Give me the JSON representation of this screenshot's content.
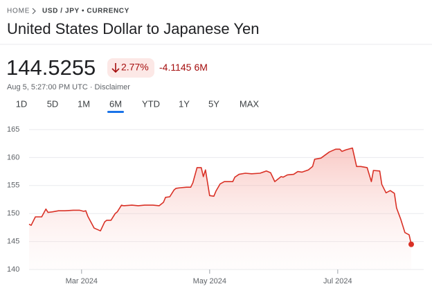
{
  "breadcrumb": {
    "home": "HOME",
    "pair": "USD / JPY • CURRENCY"
  },
  "title": "United States Dollar to Japanese Yen",
  "price": "144.5255",
  "change_percent": "2.77%",
  "change": "-4.1145",
  "period": "6M",
  "timestamp": "Aug 5, 5:27:00 PM UTC · Disclaimer",
  "tabs": [
    "1D",
    "5D",
    "1M",
    "6M",
    "YTD",
    "1Y",
    "5Y",
    "MAX"
  ],
  "active_tab": 3,
  "chart_data": {
    "type": "area",
    "color": "#d93025",
    "x": [
      0,
      1,
      3,
      6,
      8,
      9,
      11,
      14,
      17,
      21,
      24,
      26,
      27,
      28,
      31,
      34,
      36,
      37,
      39,
      41,
      42,
      44,
      45,
      49,
      52,
      55,
      59,
      62,
      64,
      65,
      67,
      69,
      70,
      72,
      75,
      77,
      78,
      80,
      82,
      83,
      84,
      86,
      88,
      89,
      91,
      93,
      97,
      98,
      100,
      103,
      106,
      110,
      113,
      115,
      117,
      120,
      121,
      123,
      126,
      128,
      130,
      133,
      135,
      136,
      139,
      143,
      146,
      148,
      149,
      151,
      154,
      156,
      158,
      161,
      163,
      164,
      167,
      168,
      170,
      172,
      174,
      175,
      177,
      179,
      181,
      182
    ],
    "values": [
      148.1,
      147.9,
      149.4,
      149.4,
      150.8,
      150.2,
      150.3,
      150.5,
      150.5,
      150.6,
      150.6,
      150.4,
      150.5,
      149.5,
      147.4,
      146.9,
      148.5,
      148.8,
      148.8,
      150.0,
      150.3,
      151.5,
      151.4,
      151.5,
      151.4,
      151.5,
      151.5,
      151.4,
      152.0,
      152.9,
      153.0,
      154.2,
      154.5,
      154.6,
      154.7,
      154.7,
      155.5,
      158.2,
      158.2,
      156.6,
      157.8,
      153.2,
      153.1,
      154.0,
      155.3,
      155.7,
      155.7,
      156.5,
      157.0,
      157.2,
      157.1,
      157.2,
      157.6,
      157.3,
      155.7,
      156.6,
      156.5,
      156.9,
      157.0,
      157.5,
      157.4,
      157.8,
      158.4,
      159.7,
      159.9,
      161.0,
      161.5,
      161.5,
      161.1,
      161.4,
      161.7,
      158.4,
      158.4,
      158.2,
      155.7,
      157.7,
      157.6,
      155.2,
      153.7,
      154.1,
      153.6,
      151.0,
      149.0,
      146.6,
      146.2,
      144.5
    ],
    "xlim": [
      0,
      182
    ],
    "xticks": [
      {
        "value": 25,
        "label": "Mar 2024"
      },
      {
        "value": 86,
        "label": "May 2024"
      },
      {
        "value": 147,
        "label": "Jul 2024"
      }
    ],
    "ylim": [
      140,
      165
    ],
    "yticks": [
      140,
      145,
      150,
      155,
      160,
      165
    ],
    "grid": true
  }
}
